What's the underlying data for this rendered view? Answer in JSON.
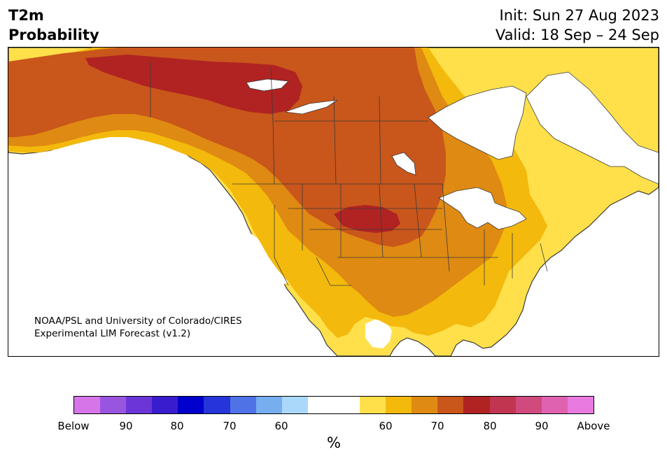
{
  "title": {
    "variable": "T2m",
    "product": "Probability",
    "init": "Init: Sun 27 Aug 2023",
    "valid": "Valid: 18 Sep – 24 Sep"
  },
  "credit": {
    "line1": "NOAA/PSL and University of Colorado/CIRES",
    "line2": "Experimental LIM Forecast (v1.2)"
  },
  "colorbar": {
    "units": "%",
    "colors": [
      "#d575e8",
      "#9a55e0",
      "#6b35d8",
      "#3a1ccf",
      "#0000cc",
      "#2535d9",
      "#4f73e6",
      "#76aef0",
      "#aad8fa",
      "#ffffff",
      "#ffffff",
      "#ffe04a",
      "#f3b90c",
      "#df8a12",
      "#c9561b",
      "#b02322",
      "#c23550",
      "#d04a7d",
      "#df62b0",
      "#e87ae0"
    ],
    "tick_labels": [
      "Below",
      "90",
      "80",
      "70",
      "60",
      "60",
      "70",
      "80",
      "90",
      "Above"
    ]
  },
  "map": {
    "colors": {
      "p50_60": "#ffe04a",
      "p60_65": "#f3b90c",
      "p65_70": "#df8a12",
      "p70_75": "#c9561b",
      "p75_80": "#b02322",
      "neutral": "#ffffff",
      "border": "#3a3a3a"
    }
  }
}
